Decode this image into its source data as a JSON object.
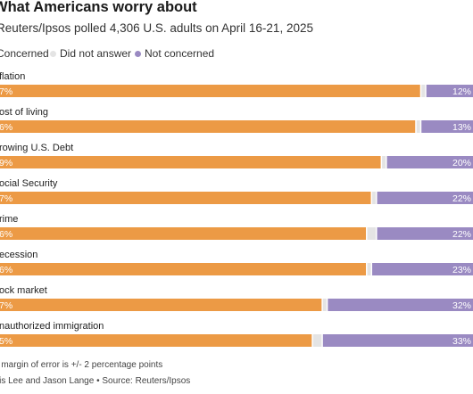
{
  "chart_data": {
    "type": "bar",
    "stacked": true,
    "orientation": "horizontal",
    "title": "What Americans worry about",
    "subtitle": "Reuters/Ipsos polled 4,306 U.S. adults on April 16-21, 2025",
    "categories": [
      "Inflation",
      "Cost of living",
      "Growing U.S. Debt",
      "Social Security",
      "Crime",
      "Recession",
      "Stock market",
      "Unauthorized immigration"
    ],
    "visible_category_labels": [
      "flation",
      "ost of living",
      "rowing U.S. Debt",
      "ocial Security",
      "rime",
      "ecession",
      "ock market",
      "nauthorized immigration"
    ],
    "series": [
      {
        "name": "Concerned",
        "values": [
          87,
          86,
          79,
          77,
          76,
          76,
          67,
          65
        ],
        "visible_value_labels": [
          "7%",
          "6%",
          "9%",
          "7%",
          "6%",
          "6%",
          "7%",
          "5%"
        ],
        "color": "#ec9a45"
      },
      {
        "name": "Did not answer",
        "values": [
          1,
          1,
          1,
          1,
          2,
          1,
          1,
          2
        ],
        "color": "#e4e4e4"
      },
      {
        "name": "Not concerned",
        "values": [
          12,
          13,
          20,
          22,
          22,
          23,
          32,
          33
        ],
        "visible_value_labels": [
          "12%",
          "13%",
          "20%",
          "22%",
          "22%",
          "23%",
          "32%",
          "33%"
        ],
        "color": "#9a8ac2"
      }
    ],
    "xlim": [
      0,
      100
    ],
    "legend_position": "top",
    "grid": false
  },
  "legend": {
    "items": [
      {
        "label": "Concerned",
        "color": "#ec9a45"
      },
      {
        "label": "Did not answer",
        "color": "#e4e4e4"
      },
      {
        "label": "Not concerned",
        "color": "#9a8ac2"
      }
    ]
  },
  "footer": {
    "note": "e margin of error is +/- 2 percentage points",
    "credit": "Iris Lee and Jason Lange • Source: Reuters/Ipsos"
  }
}
